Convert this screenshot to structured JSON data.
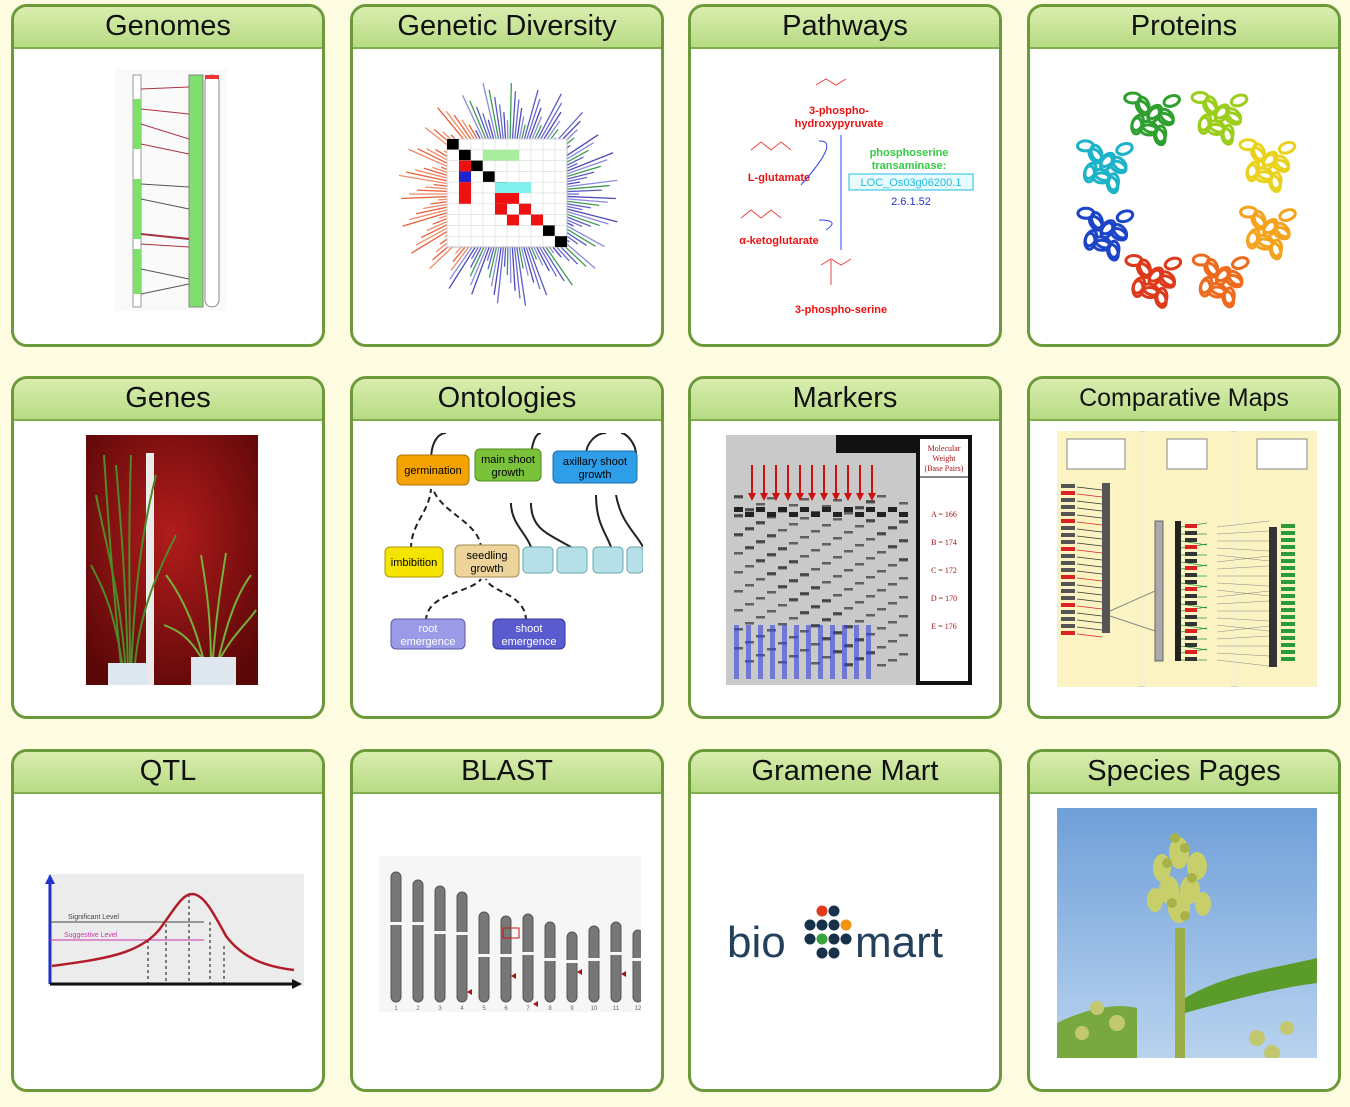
{
  "tiles": [
    {
      "id": "genomes",
      "title": "Genomes",
      "icon": "chromosome-synteny-icon"
    },
    {
      "id": "genetic_diversity",
      "title": "Genetic Diversity",
      "icon": "phylogenetic-tree-icon"
    },
    {
      "id": "pathways",
      "title": "Pathways",
      "icon": "metabolic-pathway-icon",
      "labels": {
        "m1": "3-phospho-",
        "m2": "hydroxypyruvate",
        "m3": "L-glutamate",
        "m4": "α-ketoglutarate",
        "m5": "3-phospho-serine",
        "enzyme1": "phosphoserine",
        "enzyme2": "transaminase:",
        "gene": "LOC_Os03g06200.1",
        "ec": "2.6.1.52"
      }
    },
    {
      "id": "proteins",
      "title": "Proteins",
      "icon": "protein-structure-icon"
    },
    {
      "id": "genes",
      "title": "Genes",
      "icon": "rice-plant-photo-icon"
    },
    {
      "id": "ontologies",
      "title": "Ontologies",
      "icon": "ontology-graph-icon",
      "labels": {
        "germination": "germination",
        "main_shoot_1": "main shoot",
        "main_shoot_2": "growth",
        "axillary_1": "axillary shoot",
        "axillary_2": "growth",
        "imbibition": "imbibition",
        "seedling_1": "seedling",
        "seedling_2": "growth",
        "root_1": "root",
        "root_2": "emergence",
        "shoot_1": "shoot",
        "shoot_2": "emergence"
      }
    },
    {
      "id": "markers",
      "title": "Markers",
      "icon": "gel-electrophoresis-icon",
      "labels": {
        "legend_1": "Molecular",
        "legend_2": "Weight",
        "legend_3": "(Base Pairs)",
        "a": "A = 166",
        "b": "B = 174",
        "c": "C = 172",
        "d": "D = 170",
        "e": "E = 176"
      }
    },
    {
      "id": "comparative_maps",
      "title": "Comparative Maps",
      "icon": "comparative-map-icon"
    },
    {
      "id": "qtl",
      "title": "QTL",
      "icon": "qtl-curve-icon",
      "labels": {
        "significant": "Significant Level",
        "suggestive": "Suggestive Level"
      }
    },
    {
      "id": "blast",
      "title": "BLAST",
      "icon": "chromosome-ideogram-icon",
      "chromosomes": [
        "1",
        "2",
        "3",
        "4",
        "5",
        "6",
        "7",
        "8",
        "9",
        "10",
        "11",
        "12"
      ]
    },
    {
      "id": "gramene_mart",
      "title": "Gramene Mart",
      "icon": "biomart-logo-icon",
      "logo": {
        "left": "bio",
        "right": "mart"
      }
    },
    {
      "id": "species_pages",
      "title": "Species Pages",
      "icon": "sorghum-photo-icon"
    }
  ],
  "colors": {
    "border": "#6c9a3a",
    "header": "#c3e196",
    "background": "#fdfbe0"
  }
}
